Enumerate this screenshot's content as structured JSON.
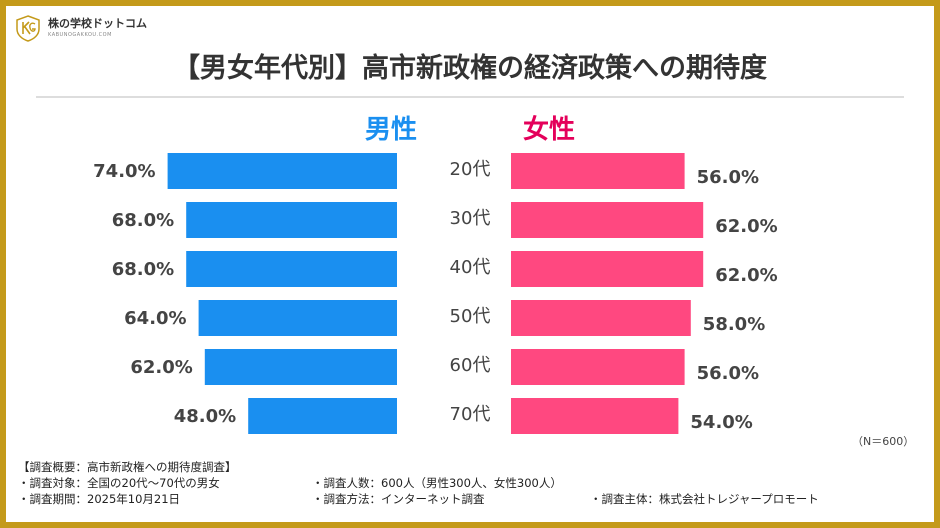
{
  "logo": {
    "name": "株の学校ドットコム",
    "sub": "KABUNOGAKKOU.COM"
  },
  "title": "【男女年代別】高市新政権の経済政策への期待度",
  "note": "（N＝600）",
  "chart_data": {
    "type": "bar",
    "orientation": "horizontal-butterfly",
    "categories": [
      "20代",
      "30代",
      "40代",
      "50代",
      "60代",
      "70代"
    ],
    "series": [
      {
        "name": "男性",
        "color": "#1a8ff0",
        "values": [
          74.0,
          68.0,
          68.0,
          64.0,
          62.0,
          48.0
        ]
      },
      {
        "name": "女性",
        "color": "#ff4880",
        "values": [
          56.0,
          62.0,
          62.0,
          58.0,
          56.0,
          54.0
        ]
      }
    ],
    "value_format": "%",
    "title": "【男女年代別】高市新政権の経済政策への期待度",
    "grid": false
  },
  "footer": {
    "heading": "【調査概要：高市新政権への期待度調査】",
    "target": "・調査対象：全国の20代〜70代の男女",
    "count": "・調査人数：600人（男性300人、女性300人）",
    "period": "・調査期間：2025年10月21日",
    "method": "・調査方法：インターネット調査",
    "sponsor": "・調査主体：株式会社トレジャープロモート"
  }
}
